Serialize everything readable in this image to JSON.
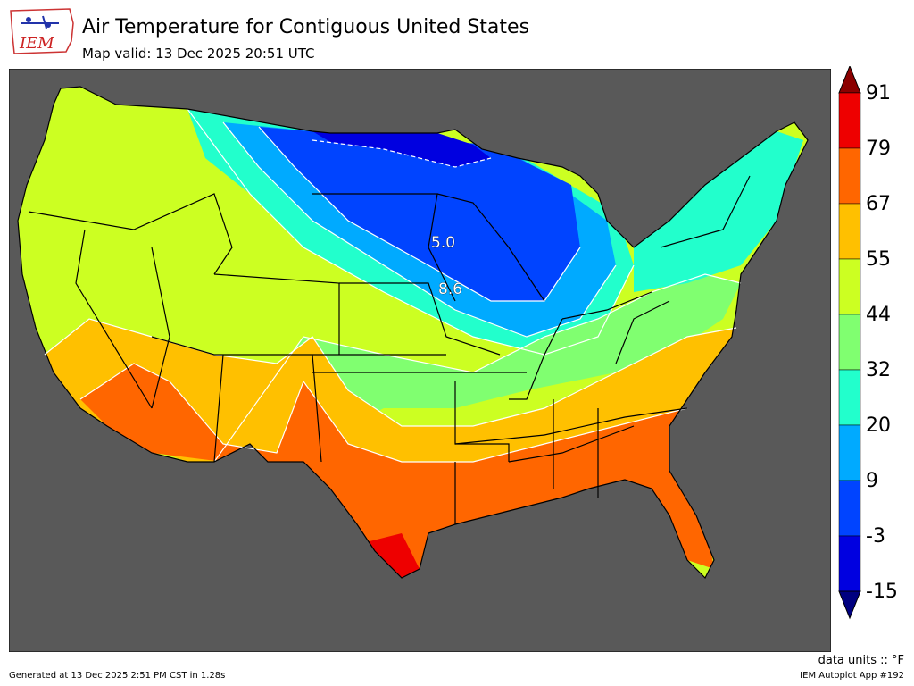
{
  "header": {
    "title": "Air Temperature for Contiguous United States",
    "subtitle": "Map valid: 13 Dec 2025 20:51 UTC"
  },
  "logo": {
    "text": "IEM",
    "icon": "iem-iowa-logo"
  },
  "map": {
    "background_color": "#595959",
    "contour_labels": [
      "5.0",
      "8.6"
    ]
  },
  "colorbar": {
    "ticks": [
      "91",
      "79",
      "67",
      "55",
      "44",
      "32",
      "20",
      "9",
      "-3",
      "-15"
    ],
    "colors": [
      "#8b0000",
      "#ee0000",
      "#ff6600",
      "#ffc000",
      "#ccff22",
      "#80ff70",
      "#22ffcc",
      "#00aaff",
      "#0044ff",
      "#0000e0",
      "#000080"
    ]
  },
  "units_label": "data units :: °F",
  "footer": {
    "left": "Generated at 13 Dec 2025 2:51 PM CST in 1.28s",
    "right": "IEM Autoplot App #192"
  }
}
